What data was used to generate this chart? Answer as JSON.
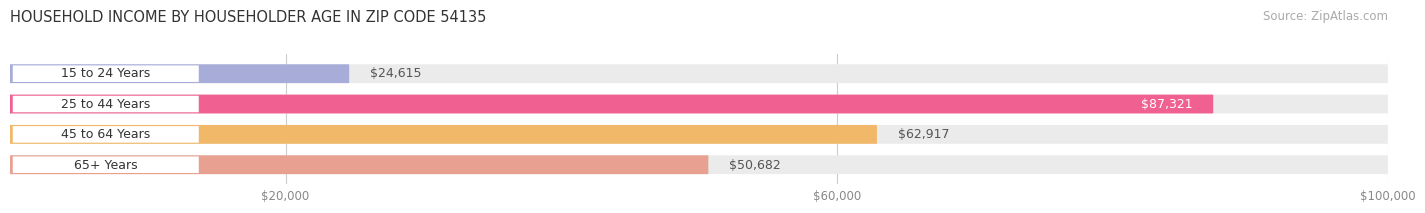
{
  "title": "HOUSEHOLD INCOME BY HOUSEHOLDER AGE IN ZIP CODE 54135",
  "source": "Source: ZipAtlas.com",
  "categories": [
    "15 to 24 Years",
    "25 to 44 Years",
    "45 to 64 Years",
    "65+ Years"
  ],
  "values": [
    24615,
    87321,
    62917,
    50682
  ],
  "bar_colors": [
    "#a8acd8",
    "#f06090",
    "#f0b868",
    "#e8a090"
  ],
  "bar_bg_color": "#ebebeb",
  "value_labels": [
    "$24,615",
    "$87,321",
    "$62,917",
    "$50,682"
  ],
  "label_inside": [
    false,
    true,
    false,
    false
  ],
  "xlim": [
    0,
    100000
  ],
  "xticks": [
    20000,
    60000,
    100000
  ],
  "xtick_labels": [
    "$20,000",
    "$60,000",
    "$100,000"
  ],
  "title_fontsize": 10.5,
  "source_fontsize": 8.5,
  "label_fontsize": 9,
  "bar_height": 0.62,
  "background_color": "#ffffff"
}
